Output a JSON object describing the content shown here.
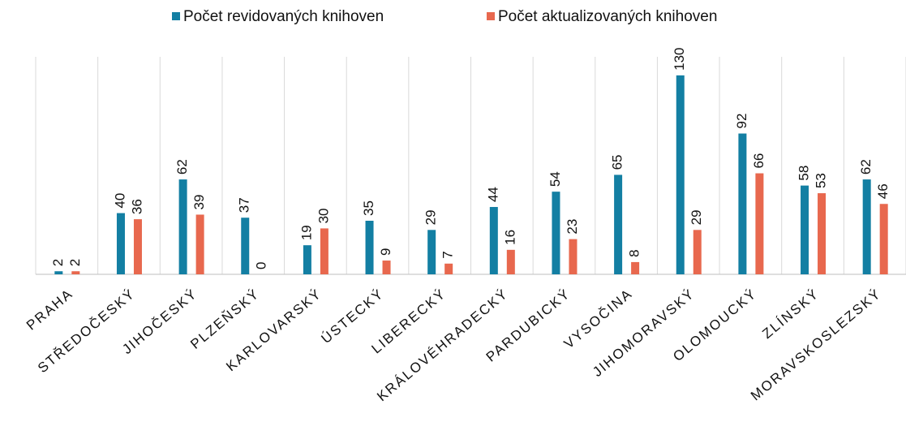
{
  "chart_data": {
    "type": "bar",
    "categories": [
      "PRAHA",
      "STŘEDOČESKÝ",
      "JIHOČESKÝ",
      "PLZEŇSKÝ",
      "KARLOVARSKÝ",
      "ÚSTECKÝ",
      "LIBERECKÝ",
      "KRÁLOVÉHRADECKÝ",
      "PARDUBICKÝ",
      "VYSOČINA",
      "JIHOMORAVSKÝ",
      "OLOMOUCKÝ",
      "ZLÍNSKÝ",
      "MORAVSKOSLEZSKÝ"
    ],
    "series": [
      {
        "name": "Počet revidovaných knihoven",
        "color": "#137fa3",
        "values": [
          2,
          40,
          62,
          37,
          19,
          35,
          29,
          44,
          54,
          65,
          130,
          92,
          58,
          62
        ]
      },
      {
        "name": "Počet aktualizovaných knihoven",
        "color": "#e8684e",
        "values": [
          2,
          36,
          39,
          0,
          30,
          9,
          7,
          16,
          23,
          8,
          29,
          66,
          53,
          46
        ]
      }
    ],
    "ylim": [
      0,
      140
    ],
    "legend": "top"
  }
}
